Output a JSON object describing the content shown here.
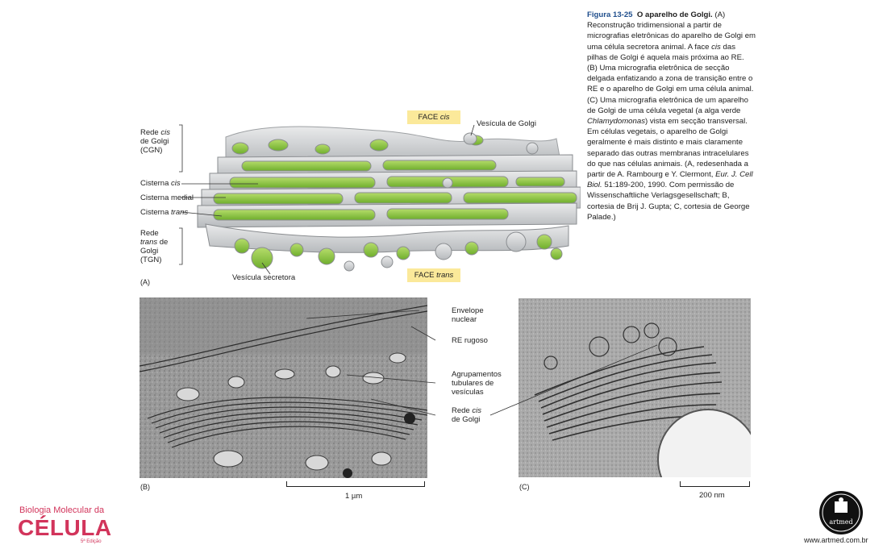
{
  "caption": {
    "figure_number": "Figura 13-25",
    "title": "O aparelho de Golgi.",
    "seg1": " (A) Reconstrução tridimensional a partir de micrografias eletrônicas do aparelho de Golgi em uma célula secretora animal. A face ",
    "seg1_it": "cis",
    "seg2": " das pilhas de Golgi é aquela mais próxima ao RE. (B) Uma micrografia eletrônica de secção delgada enfatizando a zona de transição entre o RE e o aparelho de Golgi em uma célula animal. (C) Uma micrografia eletrônica de um aparelho de Golgi de uma célula vegetal (a alga verde ",
    "seg2_it": "Chlamydomonas",
    "seg3": ") vista em secção transversal. Em células vegetais, o aparelho de Golgi geralmente é mais distinto e mais claramente separado das outras membranas intracelulares do que nas células animais. (A, redesenhada a partir de A. Rambourg e Y. Clermont, ",
    "seg3_it": "Eur. J. Cell Biol.",
    "seg4": " 51:189-200, 1990. Com permissão de Wissenschaftliche Verlagsgesellschaft; B, cortesia de Brij J. Gupta; C, cortesia de George Palade.)"
  },
  "panel_a": {
    "letter": "(A)",
    "face_cis_pre": "FACE ",
    "face_cis_it": "cis",
    "face_trans_pre": "FACE ",
    "face_trans_it": "trans",
    "vesicula_golgi": "Vesícula de Golgi",
    "vesicula_secretora": "Vesícula secretora",
    "cgn_l1_pre": "Rede ",
    "cgn_l1_it": "cis",
    "cgn_l2": "de Golgi",
    "cgn_l3": "(CGN)",
    "cisterna_cis_pre": "Cisterna ",
    "cisterna_cis_it": "cis",
    "cisterna_medial": "Cisterna medial",
    "cisterna_trans_pre": "Cisterna ",
    "cisterna_trans_it": "trans",
    "tgn_l1": "Rede",
    "tgn_l2_it": "trans",
    "tgn_l2_post": " de",
    "tgn_l3": "Golgi",
    "tgn_l4": "(TGN)"
  },
  "panel_b": {
    "letter": "(B)",
    "scale": "1 µm",
    "envelope_l1": "Envelope",
    "envelope_l2": "nuclear",
    "re_rugoso": "RE rugoso",
    "agr_l1": "Agrupamentos",
    "agr_l2": "tubulares de",
    "agr_l3": "vesículas",
    "rede_l1_pre": "Rede ",
    "rede_l1_it": "cis",
    "rede_l2": "de Golgi"
  },
  "panel_c": {
    "letter": "(C)",
    "scale": "200 nm"
  },
  "branding": {
    "book_l1": "Biologia Molecular da",
    "book_l2": "CÉLULA",
    "book_l3": "5ª Edição",
    "publisher_logo_text": "artmed",
    "website": "www.artmed.com.br"
  },
  "colors": {
    "figure_blue": "#1f4e8c",
    "brand_pink": "#d2345b",
    "label_yellow": "#fbe99a",
    "golgi_green": "#8cc63f"
  }
}
